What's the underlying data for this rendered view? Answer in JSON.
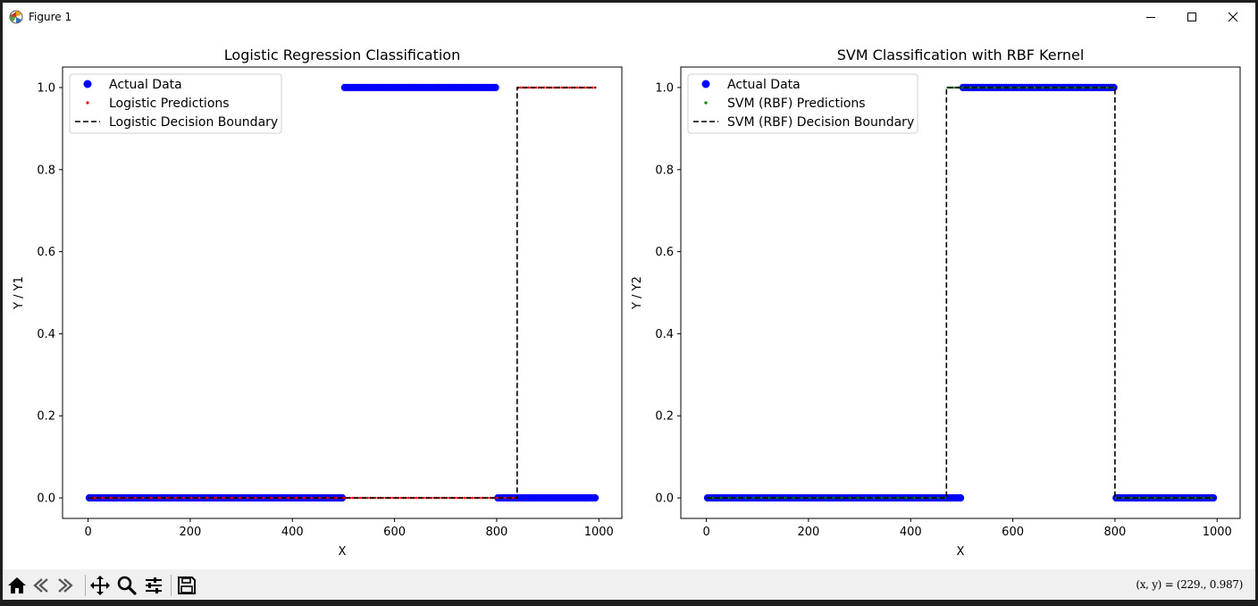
{
  "window": {
    "title": "Figure 1",
    "icons": {
      "app": "matplotlib-figure-icon",
      "minimize": "minimize-icon",
      "maximize": "maximize-icon",
      "close": "close-icon"
    }
  },
  "toolbar": {
    "buttons": [
      {
        "name": "home-icon"
      },
      {
        "name": "back-icon"
      },
      {
        "name": "forward-icon"
      },
      {
        "name": "pan-icon"
      },
      {
        "name": "zoom-icon"
      },
      {
        "name": "configure-subplots-icon"
      },
      {
        "name": "save-icon"
      }
    ],
    "coords": "(x, y) = (229., 0.987)"
  },
  "colors": {
    "actual": "#0000ff",
    "logistic_pred": "#ff0000",
    "svm_pred": "#008000",
    "boundary": "#000000"
  },
  "chart_data": [
    {
      "type": "scatter",
      "title": "Logistic Regression Classification",
      "xlabel": "X",
      "ylabel": "Y / Y1",
      "xlim": [
        -50,
        1045
      ],
      "ylim": [
        -0.05,
        1.05
      ],
      "xticks": [
        0,
        200,
        400,
        600,
        800,
        1000
      ],
      "xtick_labels": [
        "0",
        "200",
        "400",
        "600",
        "800",
        "1000"
      ],
      "yticks": [
        0.0,
        0.2,
        0.4,
        0.6,
        0.8,
        1.0
      ],
      "ytick_labels": [
        "0.0",
        "0.2",
        "0.4",
        "0.6",
        "0.8",
        "1.0"
      ],
      "legend_position": "upper-left",
      "series": [
        {
          "name": "Actual Data",
          "kind": "points",
          "color": "#0000ff",
          "segments": [
            {
              "x0": 0,
              "x1": 500,
              "y": 0
            },
            {
              "x0": 500,
              "x1": 800,
              "y": 1
            },
            {
              "x0": 800,
              "x1": 995,
              "y": 0
            }
          ]
        },
        {
          "name": "Logistic Predictions",
          "kind": "small-points",
          "color": "#ff0000",
          "segments": [
            {
              "x0": 0,
              "x1": 840,
              "y": 0
            },
            {
              "x0": 840,
              "x1": 995,
              "y": 1
            }
          ]
        },
        {
          "name": "Logistic Decision Boundary",
          "kind": "dashed-line",
          "color": "#000000",
          "points": [
            [
              0,
              0
            ],
            [
              840,
              0
            ],
            [
              840,
              1
            ],
            [
              995,
              1
            ]
          ]
        }
      ]
    },
    {
      "type": "scatter",
      "title": "SVM Classification with RBF Kernel",
      "xlabel": "X",
      "ylabel": "Y / Y2",
      "xlim": [
        -50,
        1045
      ],
      "ylim": [
        -0.05,
        1.05
      ],
      "xticks": [
        0,
        200,
        400,
        600,
        800,
        1000
      ],
      "xtick_labels": [
        "0",
        "200",
        "400",
        "600",
        "800",
        "1000"
      ],
      "yticks": [
        0.0,
        0.2,
        0.4,
        0.6,
        0.8,
        1.0
      ],
      "ytick_labels": [
        "0.0",
        "0.2",
        "0.4",
        "0.6",
        "0.8",
        "1.0"
      ],
      "legend_position": "upper-left",
      "series": [
        {
          "name": "Actual Data",
          "kind": "points",
          "color": "#0000ff",
          "segments": [
            {
              "x0": 0,
              "x1": 500,
              "y": 0
            },
            {
              "x0": 500,
              "x1": 800,
              "y": 1
            },
            {
              "x0": 800,
              "x1": 995,
              "y": 0
            }
          ]
        },
        {
          "name": "SVM (RBF) Predictions",
          "kind": "small-points",
          "color": "#008000",
          "segments": [
            {
              "x0": 0,
              "x1": 470,
              "y": 0
            },
            {
              "x0": 470,
              "x1": 800,
              "y": 1
            },
            {
              "x0": 800,
              "x1": 995,
              "y": 0
            }
          ]
        },
        {
          "name": "SVM (RBF) Decision Boundary",
          "kind": "dashed-line",
          "color": "#000000",
          "points": [
            [
              0,
              0
            ],
            [
              470,
              0
            ],
            [
              470,
              1
            ],
            [
              800,
              1
            ],
            [
              800,
              0
            ],
            [
              995,
              0
            ]
          ]
        }
      ]
    }
  ]
}
